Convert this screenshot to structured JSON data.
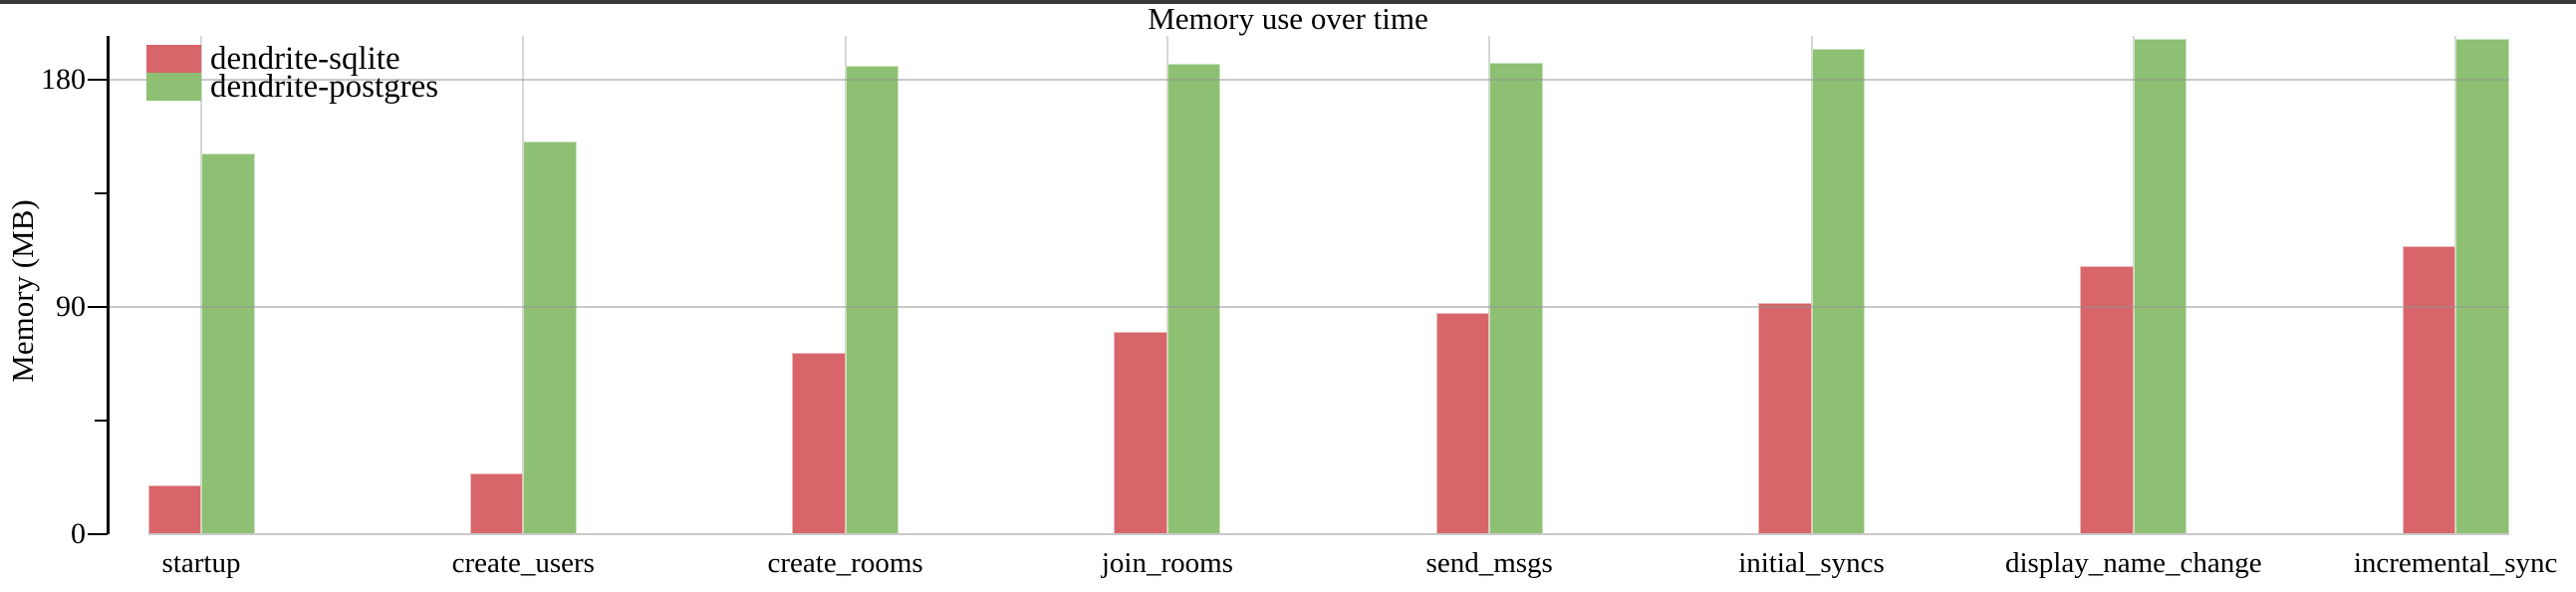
{
  "page": {
    "background": "#ffffff",
    "top_strip_color": "#3a3a3a"
  },
  "chart_data": {
    "type": "bar",
    "title": "Memory use over time",
    "ylabel": "Memory (MB)",
    "xlabel": "",
    "categories": [
      "startup",
      "create_users",
      "create_rooms",
      "join_rooms",
      "send_msgs",
      "initial_syncs",
      "display_name_change",
      "incremental_sync"
    ],
    "series": [
      {
        "name": "dendrite-sqlite",
        "color": "#d76569",
        "values": [
          19,
          24,
          71.5,
          80,
          87.5,
          91.5,
          106,
          114
        ]
      },
      {
        "name": "dendrite-postgres",
        "color": "#8dc072",
        "values": [
          150.5,
          155.5,
          185.5,
          186,
          186.5,
          192,
          196,
          196
        ]
      }
    ],
    "ylim": [
      0,
      198
    ],
    "y_ticks": [
      0,
      90,
      180
    ],
    "y_minor_ticks": [
      45,
      135
    ],
    "grid": {
      "horizontal": true,
      "vertical": true,
      "color": "#c9c9c9"
    },
    "legend_position": "top-left",
    "units": "MB"
  }
}
